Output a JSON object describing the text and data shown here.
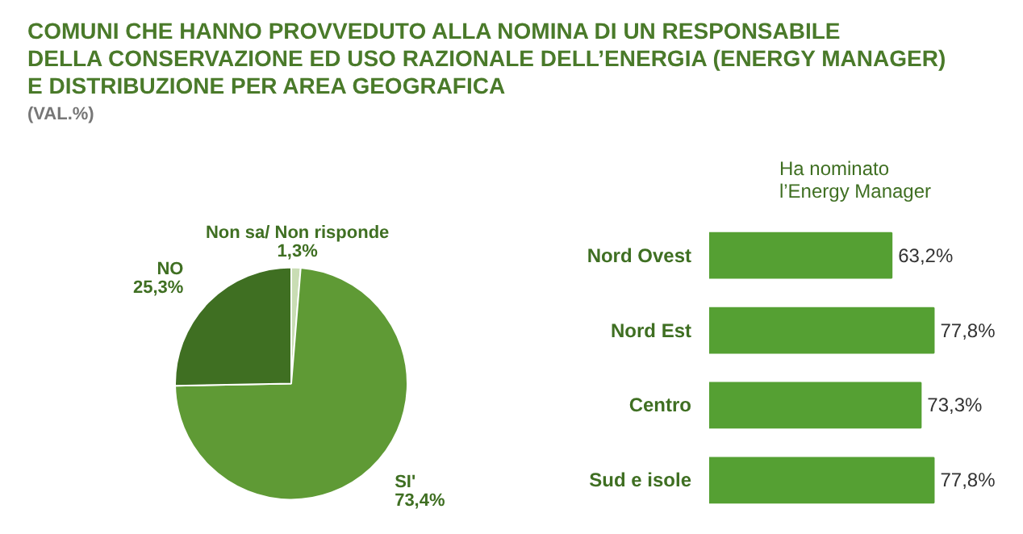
{
  "chart_data": [
    {
      "type": "pie",
      "title": "COMUNI CHE HANNO PROVVEDUTO ALLA NOMINA DI UN RESPONSABILE\nDELLA CONSERVAZIONE ED USO RAZIONALE DELL’ENERGIA (ENERGY MANAGER)\nE DISTRIBUZIONE PER AREA GEOGRAFICA",
      "subtitle": "(VAL.%)",
      "categories": [
        "Non sa/ Non risponde",
        "SI'",
        "NO"
      ],
      "values": [
        1.3,
        73.4,
        25.3
      ],
      "value_labels": [
        "1,3%",
        "73,4%",
        "25,3%"
      ],
      "colors": [
        "#c9ddb4",
        "#5f9a35",
        "#3f6f22"
      ]
    },
    {
      "type": "bar",
      "orientation": "horizontal",
      "title": "Ha nominato\nl’Energy Manager",
      "categories": [
        "Nord Ovest",
        "Nord Est",
        "Centro",
        "Sud e isole"
      ],
      "values": [
        63.2,
        77.8,
        73.3,
        77.8
      ],
      "value_labels": [
        "63,2%",
        "77,8%",
        "73,3%",
        "77,8%"
      ],
      "color": "#55a033"
    }
  ]
}
